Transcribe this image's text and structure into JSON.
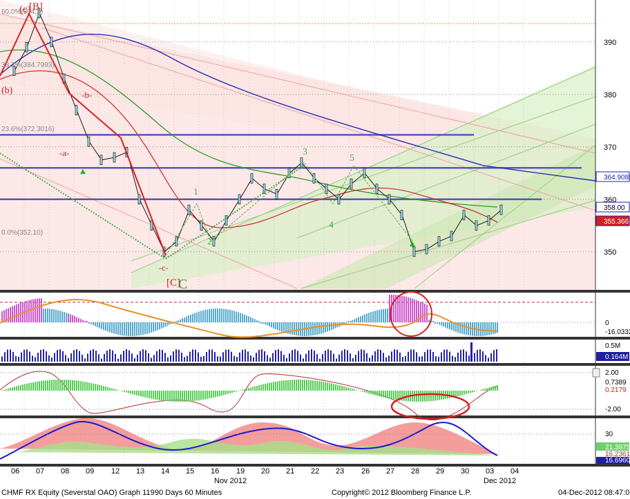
{
  "footer": {
    "security": "CHMF RX Equity (Severstal OAO) Graph 119",
    "period": "90 Days 60 Minutes",
    "copyright": "Copyright© 2012 Bloomberg Finance L.P.",
    "timestamp": "04-Dec-2012 08:47:02"
  },
  "chart_data": {
    "type": "line",
    "x_tick_labels": [
      "06",
      "07",
      "08",
      "09",
      "12",
      "13",
      "14",
      "15",
      "16",
      "19",
      "20",
      "21",
      "22",
      "23",
      "26",
      "27",
      "28",
      "29",
      "30",
      "03",
      "04"
    ],
    "x_month_labels": [
      "Nov 2012",
      "Dec 2012"
    ],
    "price_axis": {
      "ylim": [
        343,
        398
      ],
      "ticks": [
        350,
        360,
        370,
        380,
        390
      ]
    },
    "price_path": [
      {
        "d": "06",
        "v": 384.5
      },
      {
        "d": "06",
        "v": 389
      },
      {
        "d": "07",
        "v": 395.5
      },
      {
        "d": "07",
        "v": 390
      },
      {
        "d": "08",
        "v": 383
      },
      {
        "d": "08",
        "v": 377
      },
      {
        "d": "09",
        "v": 371
      },
      {
        "d": "09",
        "v": 367.5
      },
      {
        "d": "12",
        "v": 368
      },
      {
        "d": "12",
        "v": 369
      },
      {
        "d": "13",
        "v": 360
      },
      {
        "d": "13",
        "v": 355
      },
      {
        "d": "14",
        "v": 350
      },
      {
        "d": "14",
        "v": 352
      },
      {
        "d": "15",
        "v": 358
      },
      {
        "d": "15",
        "v": 355
      },
      {
        "d": "16",
        "v": 352
      },
      {
        "d": "16",
        "v": 356
      },
      {
        "d": "19",
        "v": 360
      },
      {
        "d": "19",
        "v": 364
      },
      {
        "d": "20",
        "v": 362
      },
      {
        "d": "20",
        "v": 361
      },
      {
        "d": "21",
        "v": 365
      },
      {
        "d": "21",
        "v": 367
      },
      {
        "d": "22",
        "v": 364
      },
      {
        "d": "22",
        "v": 362
      },
      {
        "d": "23",
        "v": 360
      },
      {
        "d": "23",
        "v": 363
      },
      {
        "d": "26",
        "v": 365
      },
      {
        "d": "26",
        "v": 362
      },
      {
        "d": "27",
        "v": 360
      },
      {
        "d": "27",
        "v": 357
      },
      {
        "d": "28",
        "v": 350
      },
      {
        "d": "28",
        "v": 350.5
      },
      {
        "d": "29",
        "v": 352
      },
      {
        "d": "29",
        "v": 353
      },
      {
        "d": "30",
        "v": 357
      },
      {
        "d": "30",
        "v": 355
      },
      {
        "d": "03",
        "v": 356
      },
      {
        "d": "03",
        "v": 358
      }
    ],
    "horizontal_levels": [
      {
        "name": "orange dotted top",
        "value": 393.5,
        "color": "#ff9900"
      },
      {
        "name": "blue line 1",
        "value": 372.3,
        "color": "#5555bb"
      },
      {
        "name": "blue line 2",
        "value": 366,
        "color": "#5555bb"
      },
      {
        "name": "blue line 3",
        "value": 360,
        "color": "#5555bb"
      }
    ],
    "fib_labels": [
      "60.0%(394.2)",
      "38.2%(384.7993)",
      "23.6%(372.3016)",
      "0.0%(352.10)"
    ],
    "wave_labels": [
      "(c)",
      "[B]",
      "(b)",
      "-a-",
      "-b-",
      "-c-",
      "[C]",
      "C",
      "1",
      "2",
      "3",
      "4",
      "5"
    ],
    "right_price_badges": [
      {
        "text": "364.9085",
        "color": "#1f1fa0",
        "bg": "#ffffff"
      },
      {
        "text": "358.00",
        "color": "#000000",
        "bg": "#ffffff"
      },
      {
        "text": "355.366",
        "color": "#ffffff",
        "bg": "#d42020"
      }
    ],
    "indicator_panels": [
      {
        "name": "momentum histogram",
        "labels": [
          "0",
          "-16.0332"
        ]
      },
      {
        "name": "volume",
        "labels": [
          "0.5M",
          "0.164M"
        ]
      },
      {
        "name": "oscillator",
        "labels": [
          "2.00",
          "0.7389",
          "0.2179",
          "-2.00"
        ]
      },
      {
        "name": "directional index",
        "labels": [
          "30",
          "21.3975",
          "16.2361",
          "16.6960"
        ]
      }
    ]
  }
}
